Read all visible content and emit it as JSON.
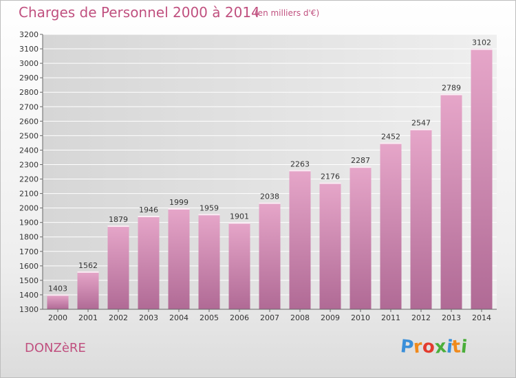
{
  "chart_data": {
    "type": "bar",
    "title": "Charges de Personnel 2000 à 2014",
    "subtitle": "(en milliers d'€)",
    "categories": [
      "2000",
      "2001",
      "2002",
      "2003",
      "2004",
      "2005",
      "2006",
      "2007",
      "2008",
      "2009",
      "2010",
      "2011",
      "2012",
      "2013",
      "2014"
    ],
    "values": [
      1403,
      1562,
      1879,
      1946,
      1999,
      1959,
      1901,
      2038,
      2263,
      2176,
      2287,
      2452,
      2547,
      2789,
      3102
    ],
    "ylim": [
      1300,
      3200
    ],
    "yticks": [
      1300,
      1400,
      1500,
      1600,
      1700,
      1800,
      1900,
      2000,
      2100,
      2200,
      2300,
      2400,
      2500,
      2600,
      2700,
      2800,
      2900,
      3000,
      3100,
      3200
    ],
    "xlabel": "",
    "ylabel": "",
    "grid": true
  },
  "footer": {
    "town": "DONZèRE",
    "logo": [
      "P",
      "r",
      "o",
      "x",
      "i",
      "t",
      "i"
    ]
  },
  "colors": {
    "accent": "#c0507f",
    "bar_top": "#e6a6c9",
    "bar_bottom": "#b06a95",
    "logo": [
      "#3a8fd9",
      "#f08a1c",
      "#e33b2e",
      "#4aae3a",
      "#3a8fd9",
      "#f08a1c",
      "#4aae3a"
    ]
  }
}
